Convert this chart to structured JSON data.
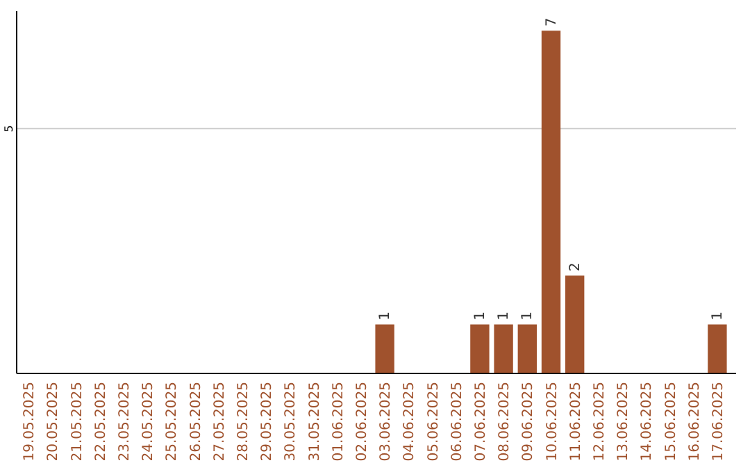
{
  "chart_data": {
    "type": "bar",
    "categories": [
      "19.05.2025",
      "20.05.2025",
      "21.05.2025",
      "22.05.2025",
      "23.05.2025",
      "24.05.2025",
      "25.05.2025",
      "26.05.2025",
      "27.05.2025",
      "28.05.2025",
      "29.05.2025",
      "30.05.2025",
      "31.05.2025",
      "01.06.2025",
      "02.06.2025",
      "03.06.2025",
      "04.06.2025",
      "05.06.2025",
      "06.06.2025",
      "07.06.2025",
      "08.06.2025",
      "09.06.2025",
      "10.06.2025",
      "11.06.2025",
      "12.06.2025",
      "13.06.2025",
      "14.06.2025",
      "15.06.2025",
      "16.06.2025",
      "17.06.2025"
    ],
    "values": [
      null,
      null,
      null,
      null,
      null,
      null,
      null,
      null,
      null,
      null,
      null,
      null,
      null,
      null,
      null,
      1,
      null,
      null,
      null,
      1,
      1,
      1,
      7,
      2,
      null,
      null,
      null,
      null,
      null,
      1
    ],
    "color": "#a0522d",
    "ylim": [
      0,
      7.4
    ],
    "yticks": [
      5
    ],
    "grid": "y",
    "data_labels": true
  }
}
